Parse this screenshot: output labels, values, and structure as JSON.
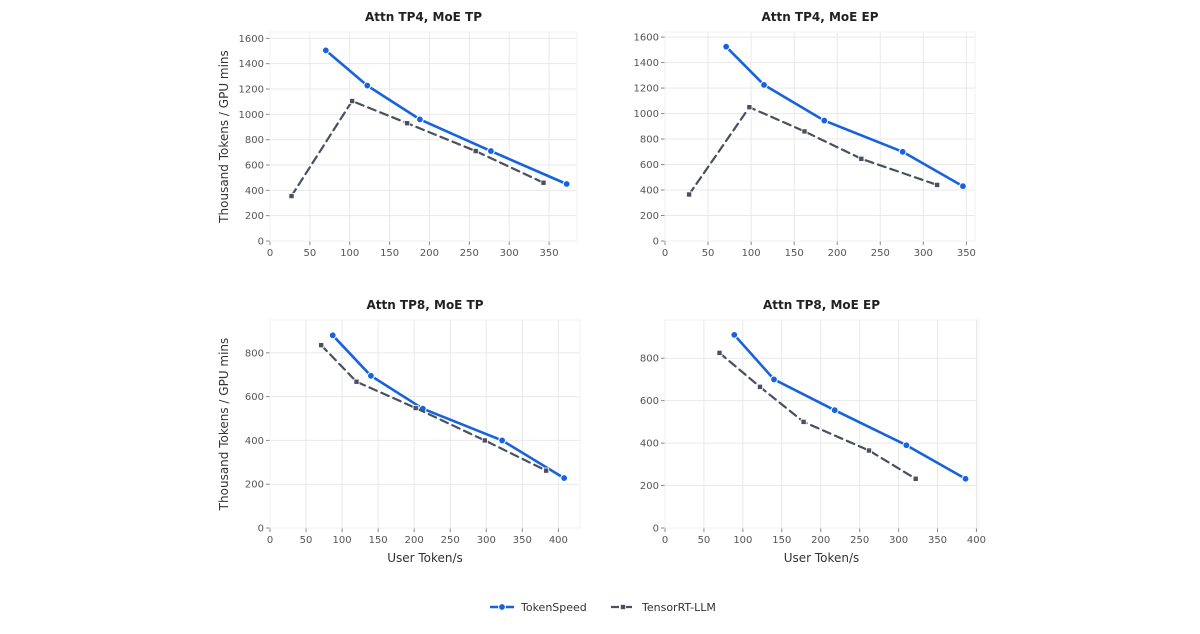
{
  "colors": {
    "tokenspeed": "#1763dd",
    "tensorrt": "#4a5060"
  },
  "legend": {
    "placement": "bottom-center",
    "items": [
      {
        "label": "TokenSpeed",
        "color": "#1763dd",
        "style": "solid",
        "marker": "circle"
      },
      {
        "label": "TensorRT-LLM",
        "color": "#4a5060",
        "style": "dashed",
        "marker": "square"
      }
    ]
  },
  "chart_data": [
    {
      "type": "line",
      "title": "Attn TP4, MoE TP",
      "xlabel": "",
      "ylabel": "Thousand Tokens / GPU mins",
      "xlim": [
        0,
        385
      ],
      "ylim": [
        0,
        1650
      ],
      "xticks": [
        0,
        50,
        100,
        150,
        200,
        250,
        300,
        350
      ],
      "yticks": [
        0,
        200,
        400,
        600,
        800,
        1000,
        1200,
        1400,
        1600
      ],
      "grid": true,
      "series": [
        {
          "name": "TokenSpeed",
          "x": [
            70,
            122,
            188,
            277,
            372
          ],
          "y": [
            1505,
            1227,
            960,
            710,
            450
          ]
        },
        {
          "name": "TensorRT-LLM",
          "x": [
            27,
            103,
            172,
            258,
            343
          ],
          "y": [
            355,
            1105,
            930,
            710,
            460
          ]
        }
      ]
    },
    {
      "type": "line",
      "title": "Attn TP4, MoE EP",
      "xlabel": "",
      "ylabel": "",
      "xlim": [
        0,
        360
      ],
      "ylim": [
        0,
        1640
      ],
      "xticks": [
        0,
        50,
        100,
        150,
        200,
        250,
        300,
        350
      ],
      "yticks": [
        0,
        200,
        400,
        600,
        800,
        1000,
        1200,
        1400,
        1600
      ],
      "grid": true,
      "series": [
        {
          "name": "TokenSpeed",
          "x": [
            71,
            115,
            185,
            276,
            346
          ],
          "y": [
            1525,
            1225,
            945,
            700,
            430
          ]
        },
        {
          "name": "TensorRT-LLM",
          "x": [
            28,
            98,
            162,
            228,
            316
          ],
          "y": [
            365,
            1050,
            860,
            645,
            440
          ]
        }
      ]
    },
    {
      "type": "line",
      "title": "Attn TP8, MoE TP",
      "xlabel": "User Token/s",
      "ylabel": "Thousand Tokens / GPU mins",
      "xlim": [
        0,
        430
      ],
      "ylim": [
        0,
        950
      ],
      "xticks": [
        0,
        50,
        100,
        150,
        200,
        250,
        300,
        350,
        400
      ],
      "yticks": [
        0,
        200,
        400,
        600,
        800
      ],
      "grid": true,
      "series": [
        {
          "name": "TokenSpeed",
          "x": [
            87,
            140,
            212,
            322,
            408
          ],
          "y": [
            880,
            695,
            545,
            400,
            228
          ]
        },
        {
          "name": "TensorRT-LLM",
          "x": [
            71,
            120,
            202,
            298,
            383
          ],
          "y": [
            835,
            668,
            548,
            400,
            262
          ]
        }
      ]
    },
    {
      "type": "line",
      "title": "Attn TP8, MoE EP",
      "xlabel": "User Token/s",
      "ylabel": "",
      "xlim": [
        0,
        402
      ],
      "ylim": [
        0,
        980
      ],
      "xticks": [
        0,
        50,
        100,
        150,
        200,
        250,
        300,
        350,
        400
      ],
      "yticks": [
        0,
        200,
        400,
        600,
        800
      ],
      "grid": true,
      "series": [
        {
          "name": "TokenSpeed",
          "x": [
            89,
            140,
            218,
            310,
            386
          ],
          "y": [
            910,
            700,
            555,
            390,
            232
          ]
        },
        {
          "name": "TensorRT-LLM",
          "x": [
            70,
            122,
            178,
            262,
            322
          ],
          "y": [
            825,
            665,
            500,
            365,
            232
          ]
        }
      ]
    }
  ]
}
